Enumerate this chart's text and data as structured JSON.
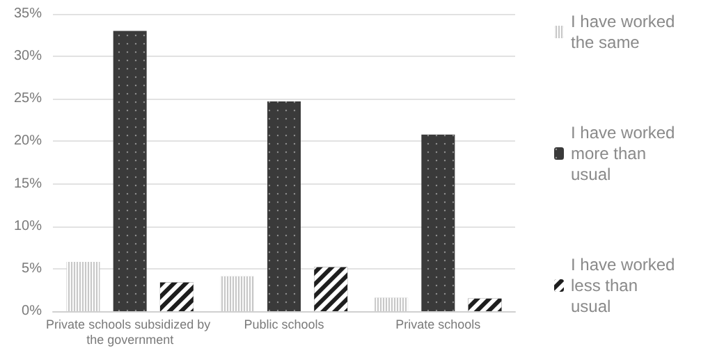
{
  "chart_data": {
    "type": "bar",
    "categories": [
      "Private schools subsidized by the government",
      "Public schools",
      "Private schools"
    ],
    "series": [
      {
        "name": "I have worked the same",
        "color": "#c8c8c8",
        "values": [
          5.8,
          4.1,
          1.6
        ]
      },
      {
        "name": "I have worked more than usual",
        "color": "#3a3a3a",
        "values": [
          33.0,
          24.7,
          20.8
        ]
      },
      {
        "name": "I have worked less than usual",
        "color": "#1e1e1e",
        "values": [
          3.4,
          5.2,
          1.5
        ]
      }
    ],
    "ylim": [
      0,
      35
    ],
    "yticks": [
      {
        "value": 0,
        "label": "0%"
      },
      {
        "value": 5,
        "label": "5%"
      },
      {
        "value": 10,
        "label": "10%"
      },
      {
        "value": 15,
        "label": "15%"
      },
      {
        "value": 20,
        "label": "20%"
      },
      {
        "value": 25,
        "label": "25%"
      },
      {
        "value": 30,
        "label": "30%"
      },
      {
        "value": 35,
        "label": "35%"
      }
    ],
    "grid": "y",
    "legend": "right"
  }
}
